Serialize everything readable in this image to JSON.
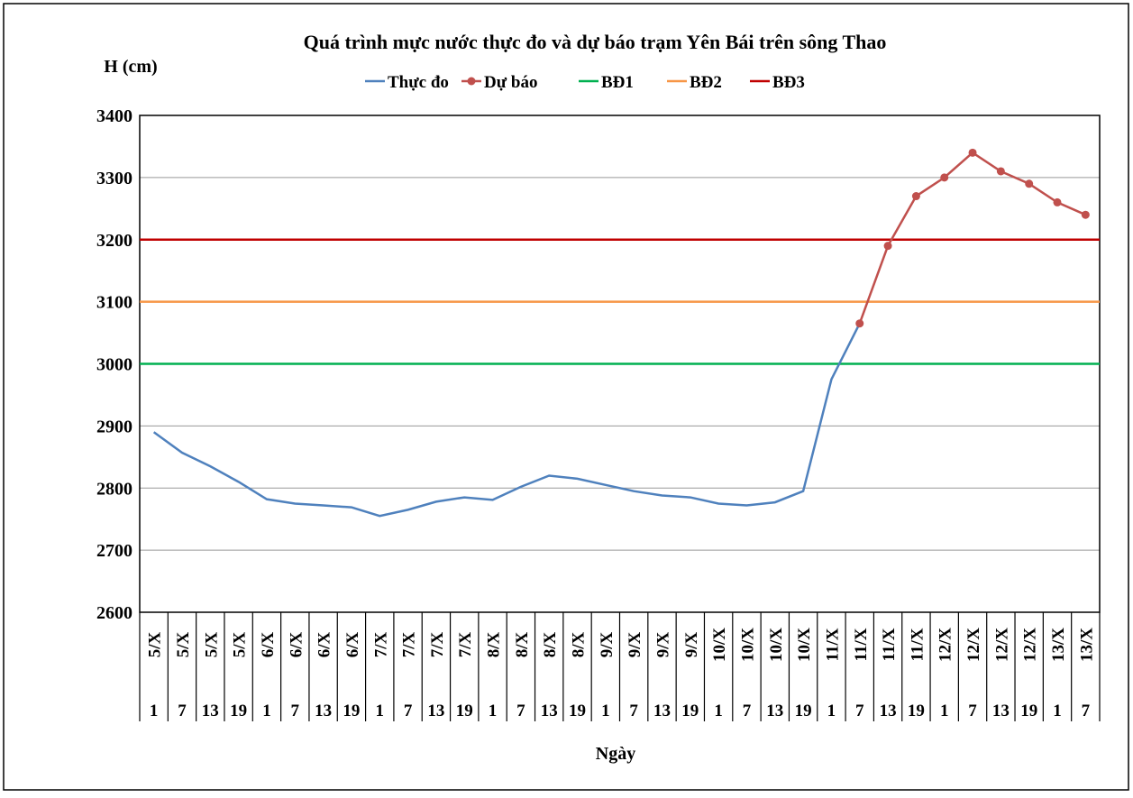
{
  "chart_data": {
    "type": "line",
    "title": "Quá trình mực nước thực đo và dự báo trạm Yên Bái trên sông Thao",
    "y_label": "H (cm)",
    "x_label": "Ngày",
    "categories": [
      "5/X",
      "5/X",
      "5/X",
      "5/X",
      "6/X",
      "6/X",
      "6/X",
      "6/X",
      "7/X",
      "7/X",
      "7/X",
      "7/X",
      "8/X",
      "8/X",
      "8/X",
      "8/X",
      "9/X",
      "9/X",
      "9/X",
      "9/X",
      "10/X",
      "10/X",
      "10/X",
      "10/X",
      "11/X",
      "11/X",
      "11/X",
      "11/X",
      "12/X",
      "12/X",
      "12/X",
      "12/X",
      "13/X",
      "13/X"
    ],
    "hours": [
      1,
      7,
      13,
      19,
      1,
      7,
      13,
      19,
      1,
      7,
      13,
      19,
      1,
      7,
      13,
      19,
      1,
      7,
      13,
      19,
      1,
      7,
      13,
      19,
      1,
      7,
      13,
      19,
      1,
      7,
      13,
      19,
      1,
      7
    ],
    "series": [
      {
        "name": "Thực đo",
        "color": "#4f81bd",
        "marker": false,
        "values": [
          2890,
          2857,
          2835,
          2810,
          2782,
          2775,
          2772,
          2769,
          2755,
          2765,
          2778,
          2785,
          2781,
          2802,
          2820,
          2815,
          2805,
          2795,
          2788,
          2785,
          2775,
          2772,
          2777,
          2795,
          2975,
          3065,
          null,
          null,
          null,
          null,
          null,
          null,
          null,
          null
        ]
      },
      {
        "name": "Dự báo",
        "color": "#c0504d",
        "marker": true,
        "values": [
          null,
          null,
          null,
          null,
          null,
          null,
          null,
          null,
          null,
          null,
          null,
          null,
          null,
          null,
          null,
          null,
          null,
          null,
          null,
          null,
          null,
          null,
          null,
          null,
          null,
          3065,
          3190,
          3270,
          3300,
          3340,
          3310,
          3290,
          3260,
          3240
        ]
      }
    ],
    "thresholds": [
      {
        "name": "BĐ1",
        "color": "#00b050",
        "value": 3000
      },
      {
        "name": "BĐ2",
        "color": "#f79646",
        "value": 3100
      },
      {
        "name": "BĐ3",
        "color": "#c00000",
        "value": 3200
      }
    ],
    "ylim": [
      2600,
      3400
    ],
    "yticks": [
      2600,
      2700,
      2800,
      2900,
      3000,
      3100,
      3200,
      3300,
      3400
    ],
    "grid": true
  }
}
